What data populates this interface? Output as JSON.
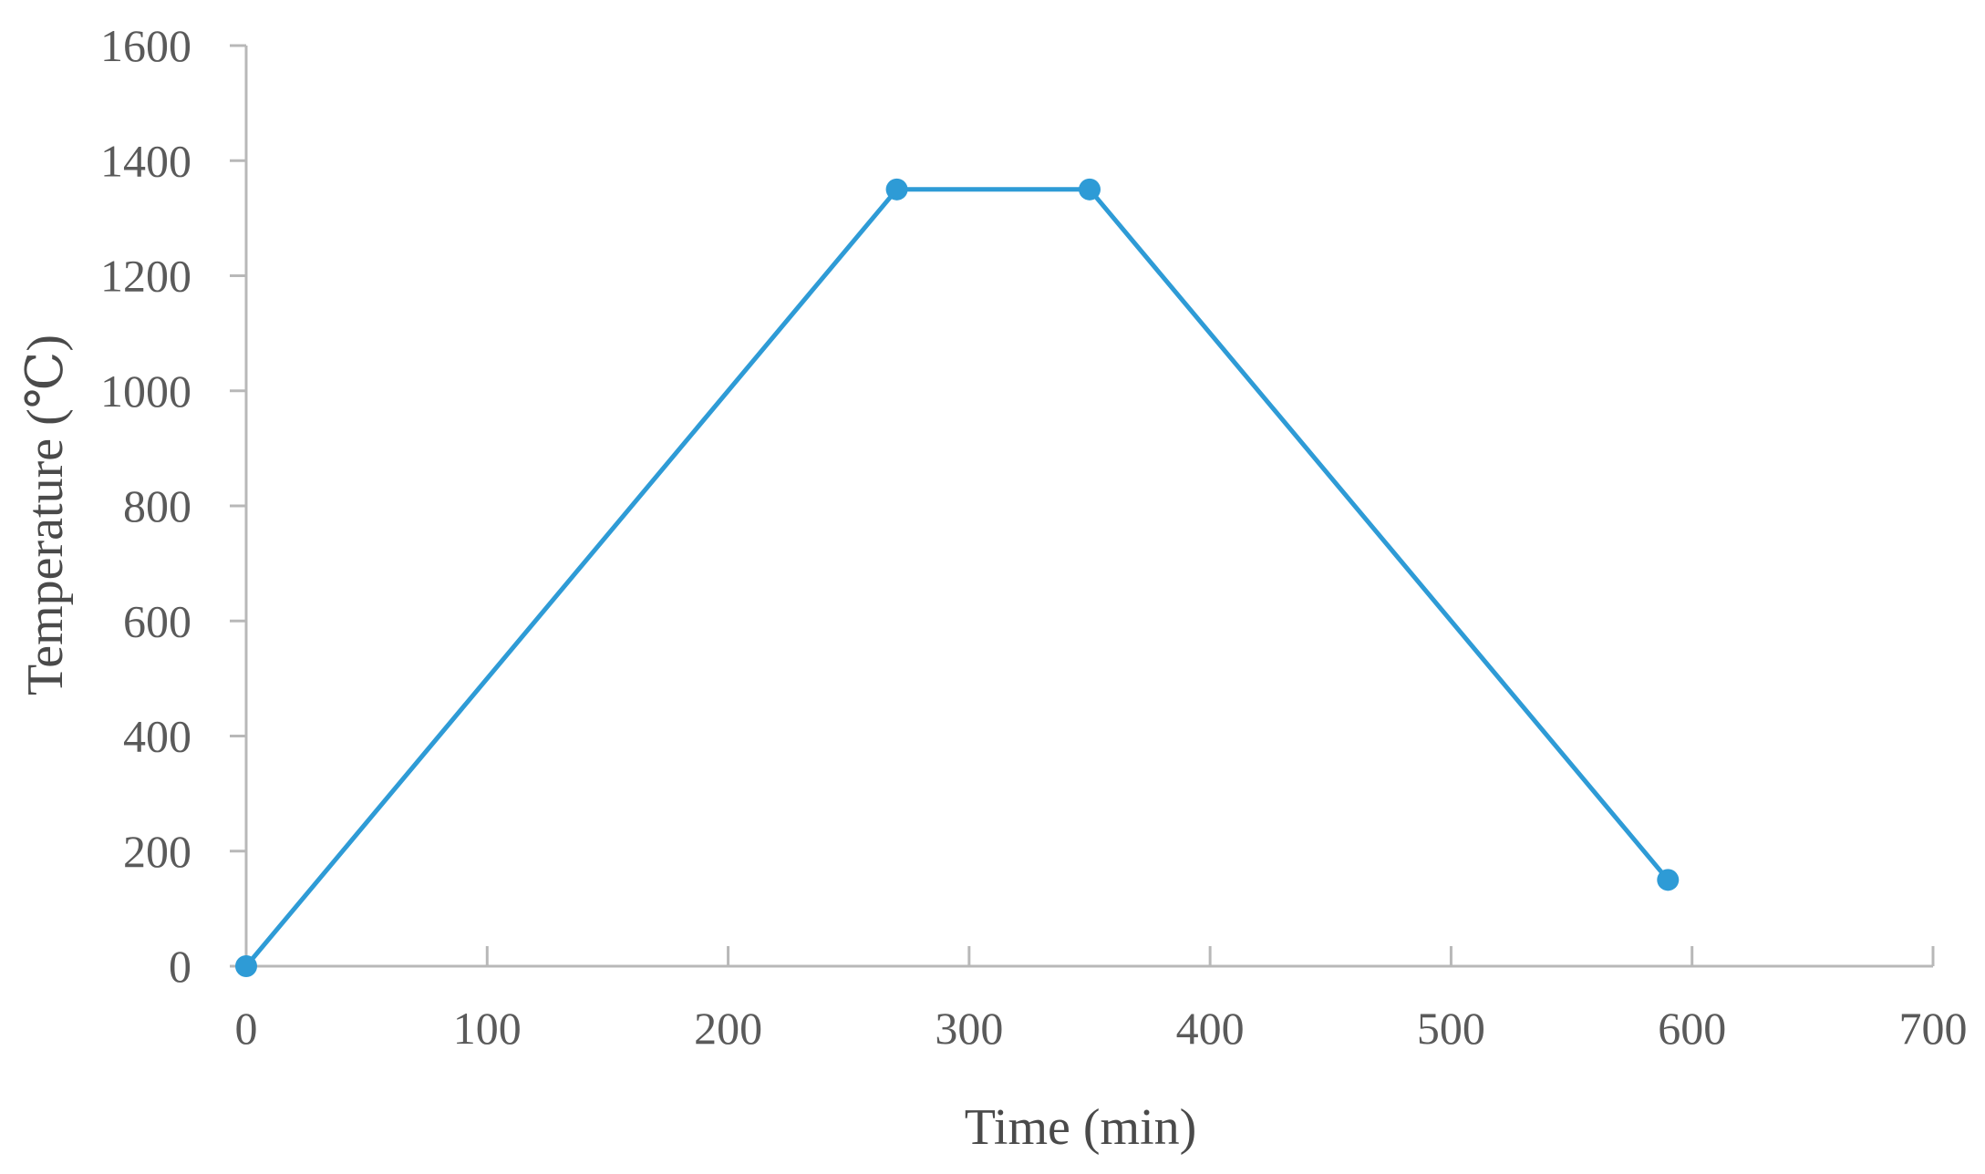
{
  "chart_data": {
    "type": "line",
    "title": "",
    "xlabel": "Time (min)",
    "ylabel": "Temperature (℃)",
    "xlim": [
      0,
      700
    ],
    "ylim": [
      0,
      1600
    ],
    "x_ticks": [
      0,
      100,
      200,
      300,
      400,
      500,
      600,
      700
    ],
    "y_ticks": [
      0,
      200,
      400,
      600,
      800,
      1000,
      1200,
      1400,
      1600
    ],
    "grid": false,
    "legend": "none",
    "series": [
      {
        "color": "#2e9bd6",
        "marker": "circle",
        "x": [
          0,
          270,
          350,
          590
        ],
        "y": [
          0,
          1350,
          1350,
          150
        ]
      }
    ]
  }
}
